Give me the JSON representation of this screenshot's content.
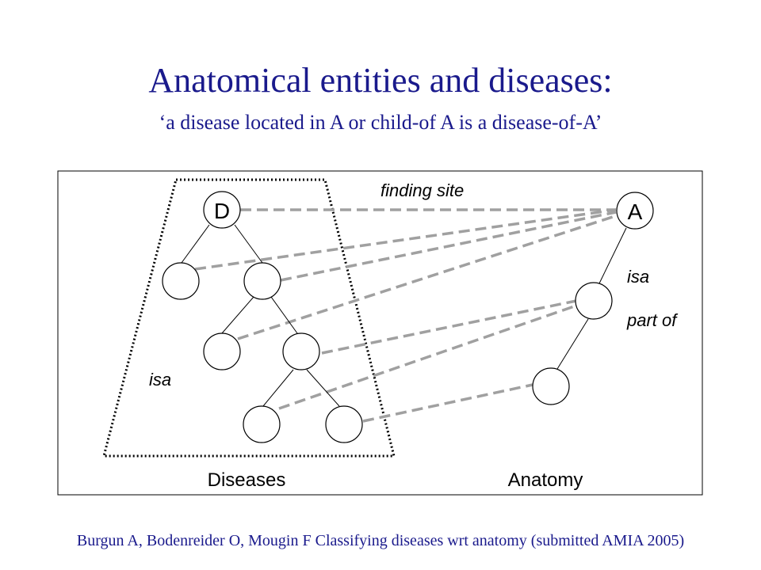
{
  "slide": {
    "title": "Anatomical entities and diseases:",
    "subtitle": "‘a disease located in A or child-of A is a disease-of-A’",
    "citation": "Burgun A, Bodenreider O, Mougin F Classifying diseases wrt anatomy (submitted AMIA 2005)"
  },
  "diagram": {
    "node_d_label": "D",
    "node_a_label": "A",
    "edge_finding_site": "finding site",
    "edge_isa_diseases": "isa",
    "edge_isa_anatomy": "isa",
    "edge_part_of": "part of",
    "group_diseases": "Diseases",
    "group_anatomy": "Anatomy"
  }
}
